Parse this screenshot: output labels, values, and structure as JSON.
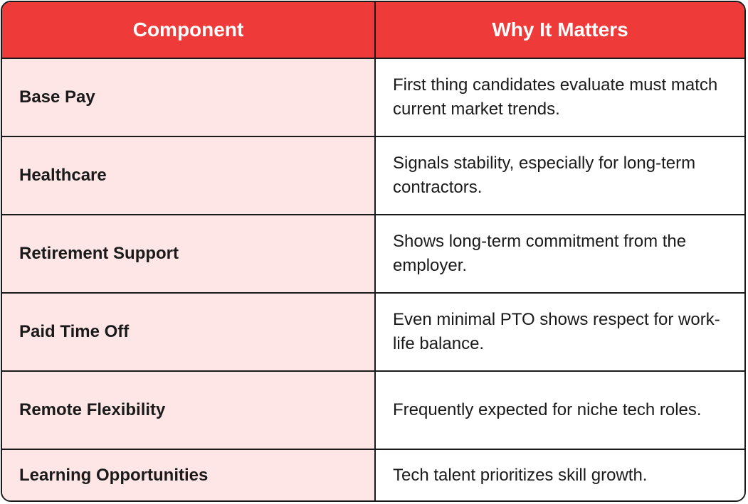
{
  "table": {
    "headers": {
      "component": "Component",
      "why": "Why It Matters"
    },
    "rows": [
      {
        "component": "Base Pay",
        "why": "First thing candidates evaluate must match current market trends."
      },
      {
        "component": "Healthcare",
        "why": "Signals stability, especially for long-term contractors."
      },
      {
        "component": "Retirement Support",
        "why": "Shows long-term commitment from the employer."
      },
      {
        "component": "Paid Time Off",
        "why": "Even minimal PTO shows respect for work-life balance."
      },
      {
        "component": "Remote Flexibility",
        "why": "Frequently expected for niche tech roles."
      },
      {
        "component": "Learning Opportunities",
        "why": "Tech talent prioritizes skill growth."
      }
    ]
  },
  "colors": {
    "header_bg": "#ef3a3a",
    "header_text": "#ffffff",
    "component_cell_bg": "#ffe6e6",
    "border": "#1a1a1a"
  }
}
